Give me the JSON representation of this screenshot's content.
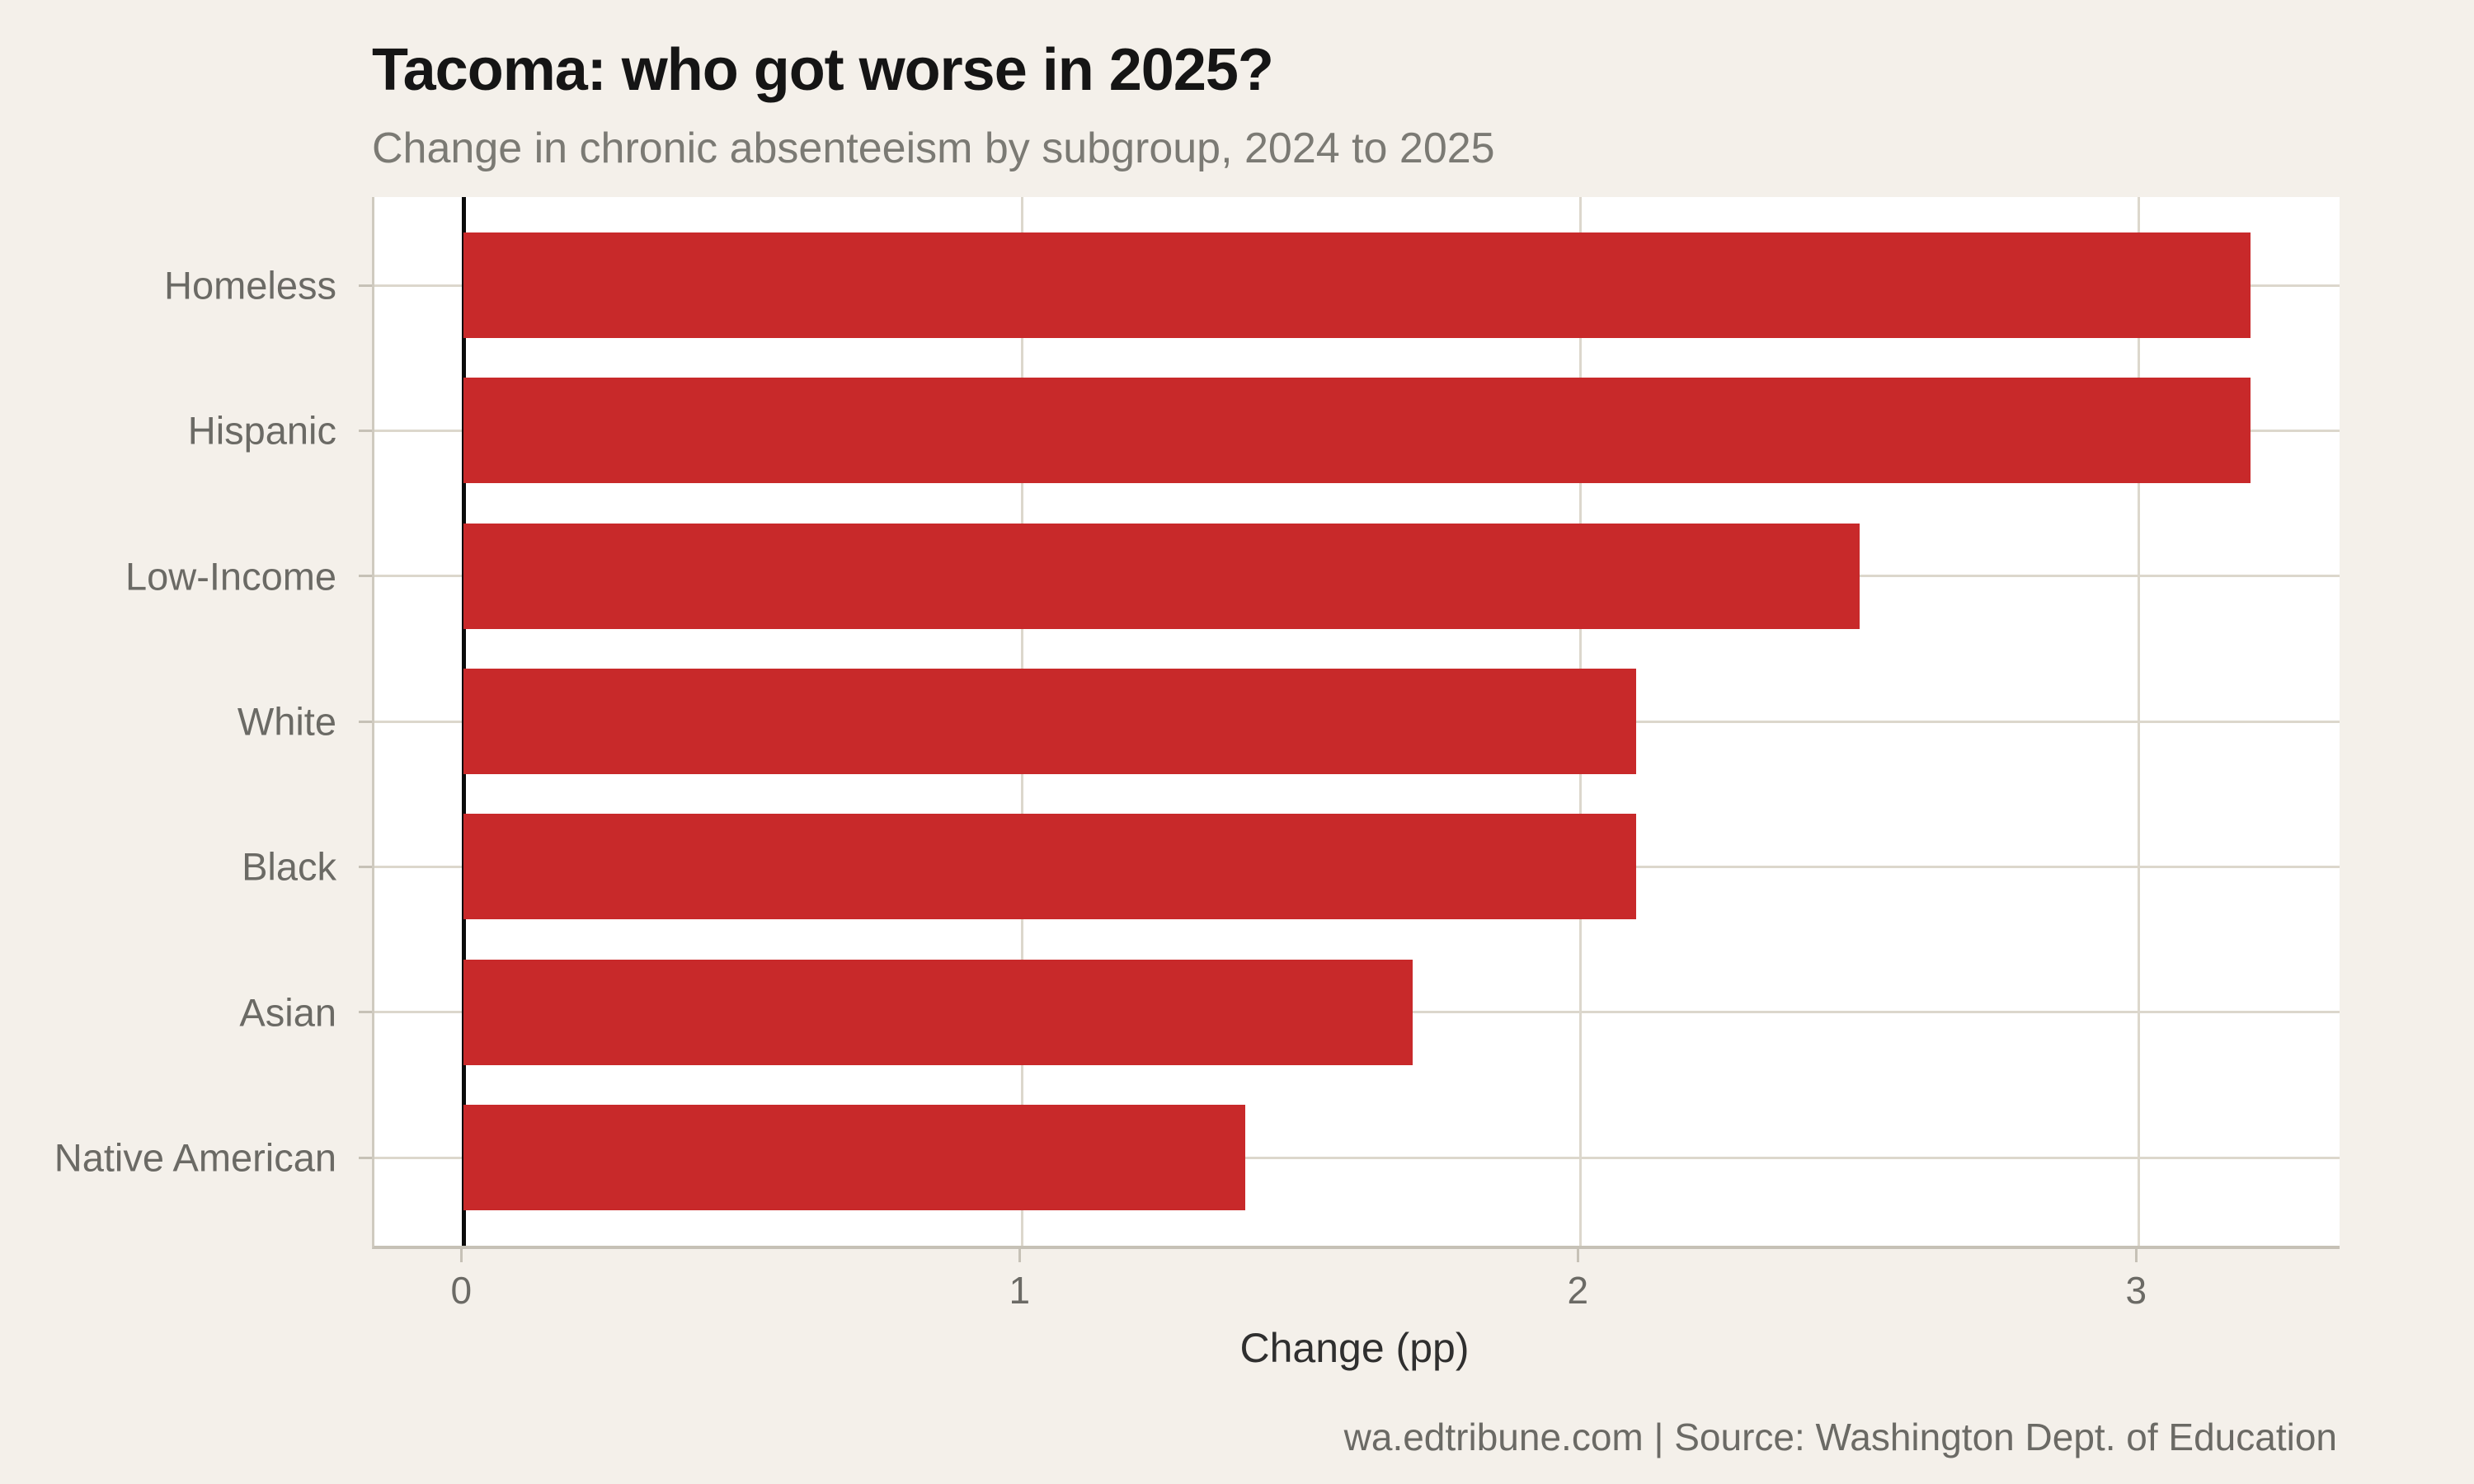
{
  "title": "Tacoma: who got worse in 2025?",
  "subtitle": "Change in chronic absenteeism by subgroup, 2024 to 2025",
  "footer": "wa.edtribune.com | Source: Washington Dept. of Education",
  "chart_data": {
    "type": "bar",
    "orientation": "horizontal",
    "title": "Tacoma: who got worse in 2025?",
    "subtitle": "Change in chronic absenteeism by subgroup, 2024 to 2025",
    "categories": [
      "Homeless",
      "Hispanic",
      "Low-Income",
      "White",
      "Black",
      "Asian",
      "Native American"
    ],
    "values": [
      3.2,
      3.2,
      2.5,
      2.1,
      2.1,
      1.7,
      1.4
    ],
    "xlabel": "Change (pp)",
    "ylabel": "",
    "xlim": [
      -0.16,
      3.36
    ],
    "xticks": [
      0,
      1,
      2,
      3
    ],
    "grid": true,
    "legend": "none",
    "bar_color": "#c8292a",
    "zero_line_color": "#0b0b0b",
    "gridline_color": "#dcd7cc",
    "background_color": "#f4f0ea",
    "plot_background_color": "#ffffff",
    "source_note": "wa.edtribune.com | Source: Washington Dept. of Education"
  }
}
